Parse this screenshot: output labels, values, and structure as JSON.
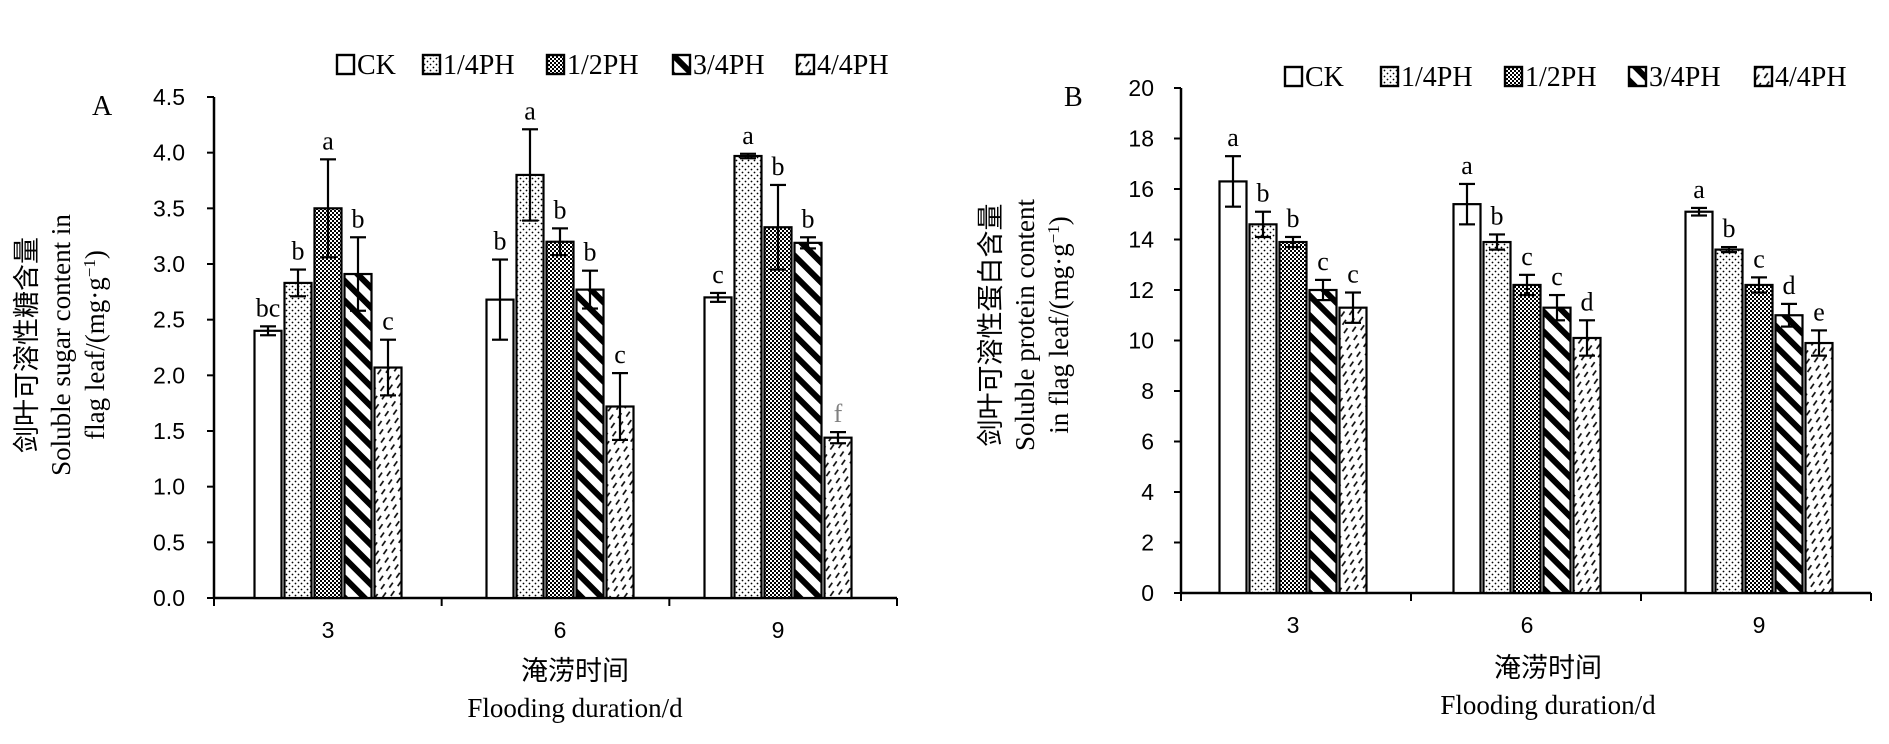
{
  "chart_data": [
    {
      "type": "bar",
      "panel_label": "A",
      "title": "",
      "ylabel_cn": "剑叶可溶性糖含量",
      "ylabel_en_1": "Soluble sugar content in",
      "ylabel_en_2": "flag leaf/(mg·g",
      "ylabel_unit_sup": "−1",
      "ylabel_unit_close": ")",
      "xlabel_cn": "淹涝时间",
      "xlabel_en": "Flooding duration/d",
      "ylim": [
        0,
        4.5
      ],
      "yticks": [
        0,
        0.5,
        1.0,
        1.5,
        2.0,
        2.5,
        3.0,
        3.5,
        4.0,
        4.5
      ],
      "ytick_labels": [
        "0.0",
        "0.5",
        "1.0",
        "1.5",
        "2.0",
        "2.5",
        "3.0",
        "3.5",
        "4.0",
        "4.5"
      ],
      "categories": [
        "3",
        "6",
        "9"
      ],
      "legend_position": "top",
      "series": [
        {
          "name": "CK",
          "values": [
            2.4,
            2.68,
            2.7
          ],
          "errors": [
            0.04,
            0.36,
            0.04
          ],
          "letters": [
            "bc",
            "b",
            "c"
          ]
        },
        {
          "name": "1/4PH",
          "values": [
            2.83,
            3.8,
            3.97
          ],
          "errors": [
            0.12,
            0.41,
            0.02
          ],
          "letters": [
            "b",
            "a",
            "a"
          ]
        },
        {
          "name": "1/2PH",
          "values": [
            3.5,
            3.2,
            3.33
          ],
          "errors": [
            0.44,
            0.12,
            0.38
          ],
          "letters": [
            "a",
            "b",
            "b"
          ]
        },
        {
          "name": "3/4PH",
          "values": [
            2.91,
            2.77,
            3.19
          ],
          "errors": [
            0.33,
            0.17,
            0.05
          ],
          "letters": [
            "b",
            "b",
            "b"
          ]
        },
        {
          "name": "4/4PH",
          "values": [
            2.07,
            1.72,
            1.44
          ],
          "errors": [
            0.25,
            0.3,
            0.05
          ],
          "letters": [
            "c",
            "c",
            "f"
          ]
        }
      ]
    },
    {
      "type": "bar",
      "panel_label": "B",
      "title": "",
      "ylabel_cn": "剑叶可溶性蛋白含量",
      "ylabel_en_1": "Soluble protein content",
      "ylabel_en_2": "in flag leaf/(mg·g",
      "ylabel_unit_sup": "−1",
      "ylabel_unit_close": ")",
      "xlabel_cn": "淹涝时间",
      "xlabel_en": "Flooding duration/d",
      "ylim": [
        0,
        20
      ],
      "yticks": [
        0,
        2,
        4,
        6,
        8,
        10,
        12,
        14,
        16,
        18,
        20
      ],
      "ytick_labels": [
        "0",
        "2",
        "4",
        "6",
        "8",
        "10",
        "12",
        "14",
        "16",
        "18",
        "20"
      ],
      "categories": [
        "3",
        "6",
        "9"
      ],
      "legend_position": "top",
      "series": [
        {
          "name": "CK",
          "values": [
            16.3,
            15.4,
            15.1
          ],
          "errors": [
            1.0,
            0.8,
            0.15
          ],
          "letters": [
            "a",
            "a",
            "a"
          ]
        },
        {
          "name": "1/4PH",
          "values": [
            14.6,
            13.9,
            13.6
          ],
          "errors": [
            0.5,
            0.3,
            0.1
          ],
          "letters": [
            "b",
            "b",
            "b"
          ]
        },
        {
          "name": "1/2PH",
          "values": [
            13.9,
            12.2,
            12.2
          ],
          "errors": [
            0.2,
            0.4,
            0.3
          ],
          "letters": [
            "b",
            "c",
            "c"
          ]
        },
        {
          "name": "3/4PH",
          "values": [
            12.0,
            11.3,
            11.0
          ],
          "errors": [
            0.4,
            0.5,
            0.45
          ],
          "letters": [
            "c",
            "c",
            "d"
          ]
        },
        {
          "name": "4/4PH",
          "values": [
            11.3,
            10.1,
            9.9
          ],
          "errors": [
            0.6,
            0.7,
            0.5
          ],
          "letters": [
            "c",
            "d",
            "e"
          ]
        }
      ]
    }
  ],
  "colors": {
    "axis": "#000000",
    "bar_fill": "#ffffff",
    "pattern": "#000000",
    "special_letter": "#808080"
  },
  "legend_entries": [
    "CK",
    "1/4PH",
    "1/2PH",
    "3/4PH",
    "4/4PH"
  ]
}
